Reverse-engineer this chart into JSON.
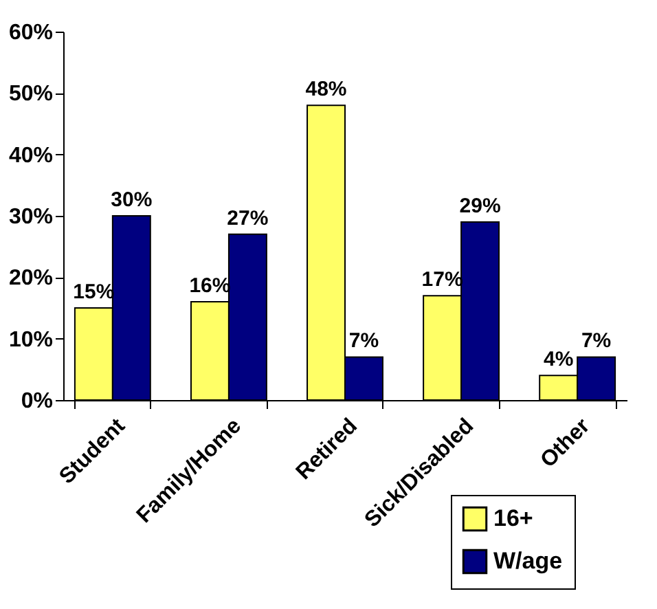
{
  "chart_data": {
    "type": "bar",
    "categories": [
      "Student",
      "Family/Home",
      "Retired",
      "Sick/Disabled",
      "Other"
    ],
    "series": [
      {
        "name": "16+",
        "color": "#ffff66",
        "values": [
          15,
          16,
          48,
          17,
          4
        ],
        "value_labels": [
          "15%",
          "16%",
          "48%",
          "17%",
          "4%"
        ]
      },
      {
        "name": "W/age",
        "color": "#000080",
        "values": [
          30,
          27,
          7,
          29,
          7
        ],
        "value_labels": [
          "30%",
          "27%",
          "7%",
          "29%",
          "7%"
        ]
      }
    ],
    "ylim": [
      0,
      60
    ],
    "yticks": [
      {
        "value": 0,
        "label": "0%"
      },
      {
        "value": 10,
        "label": "10%"
      },
      {
        "value": 20,
        "label": "20%"
      },
      {
        "value": 30,
        "label": "30%"
      },
      {
        "value": 40,
        "label": "40%"
      },
      {
        "value": 50,
        "label": "50%"
      },
      {
        "value": 60,
        "label": "60%"
      }
    ],
    "grid": false,
    "legend": "bottom right"
  }
}
